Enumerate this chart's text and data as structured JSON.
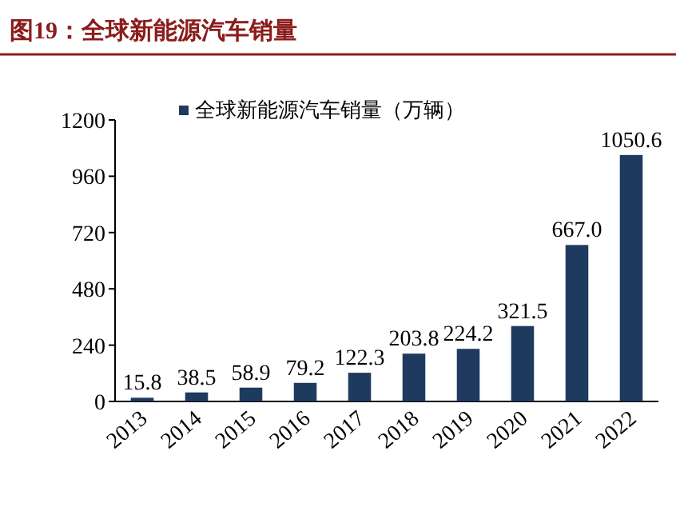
{
  "chart_data": {
    "type": "bar",
    "title": "图19：全球新能源汽车销量",
    "categories": [
      "2013",
      "2014",
      "2015",
      "2016",
      "2017",
      "2018",
      "2019",
      "2020",
      "2021",
      "2022"
    ],
    "series": [
      {
        "name": "全球新能源汽车销量（万辆）",
        "color": "#1f3a5f",
        "values": [
          15.8,
          38.5,
          58.9,
          79.2,
          122.3,
          203.8,
          224.2,
          321.5,
          667.0,
          1050.6
        ],
        "value_labels": [
          "15.8",
          "38.5",
          "58.9",
          "79.2",
          "122.3",
          "203.8",
          "224.2",
          "321.5",
          "667.0",
          "1050.6"
        ]
      }
    ],
    "ylim": [
      0,
      1200
    ],
    "yticks": [
      0,
      240,
      480,
      720,
      960,
      1200
    ],
    "legend": "top",
    "grid": false
  }
}
